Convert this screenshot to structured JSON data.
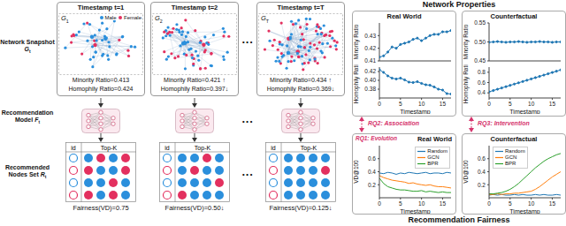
{
  "diagram": {
    "row_labels": [
      {
        "text": "Network Snapshot",
        "symbol": "G",
        "sub": "t"
      },
      {
        "text": "Recommendation Model",
        "symbol": "F",
        "sub": "t"
      },
      {
        "text": "Recommended Nodes Set",
        "symbol": "R",
        "sub": "t"
      }
    ],
    "legend": [
      {
        "name": "Male",
        "color": "#2b8fdc"
      },
      {
        "name": "Female",
        "color": "#e3305f"
      }
    ],
    "table_header": [
      "id",
      "Top-K"
    ],
    "ellipsis": "···",
    "snapshots": [
      {
        "title": "Timestamp t=1",
        "symbol": "G",
        "sub": "1",
        "minority_ratio": "Minority Ratio=0.413",
        "homophily_ratio": "Homophily Ratio=0.424",
        "fairness": "Fairness(VD)=0.75"
      },
      {
        "title": "Timestamp t=2",
        "symbol": "G",
        "sub": "2",
        "minority_ratio": "Minority Ratio=0.421 ↑",
        "homophily_ratio": "Homophily Ratio=0.397↓",
        "fairness": "Fairness(VD)=0.50↓"
      },
      {
        "title": "Timestamp t=T",
        "symbol": "G",
        "sub": "T",
        "minority_ratio": "Minority Ratio=0.434 ↑",
        "homophily_ratio": "Homophily Ratio=0.369↓",
        "fairness": "Fairness(VD)=0.125↓"
      }
    ]
  },
  "network_properties": {
    "title": "Network Properties",
    "columns": [
      "Real World",
      "Counterfactual"
    ]
  },
  "arrows": [
    "RQ2: Association",
    "RQ3: Intervention"
  ],
  "recommendation_fairness": {
    "title": "Recommendation Fairness",
    "annotation": "RQ1: Evolution"
  },
  "chart_data": [
    {
      "type": "line",
      "y_label": "Minority Ratio",
      "tick_labels": "y",
      "x": [
        0,
        1,
        2,
        3,
        4,
        5,
        6,
        7,
        8,
        9,
        10,
        11,
        12,
        13,
        14,
        15,
        16,
        17
      ],
      "xlim": [
        0,
        17
      ],
      "xticks": [
        0,
        5,
        10,
        15
      ],
      "ylim": [
        0.41,
        0.44
      ],
      "yticks": [
        0.41,
        0.42,
        0.43
      ],
      "series": [
        {
          "color": "#1f77b4",
          "marker": "o",
          "values": [
            0.413,
            0.414,
            0.417,
            0.421,
            0.42,
            0.423,
            0.424,
            0.425,
            0.427,
            0.428,
            0.426,
            0.428,
            0.43,
            0.431,
            0.431,
            0.433,
            0.433,
            0.434
          ]
        }
      ]
    },
    {
      "type": "line",
      "y_label": "Homophily Ratio",
      "x_label": "Timestamp",
      "x": [
        0,
        1,
        2,
        3,
        4,
        5,
        6,
        7,
        8,
        9,
        10,
        11,
        12,
        13,
        14,
        15,
        16,
        17
      ],
      "xlim": [
        0,
        17
      ],
      "xticks": [
        0,
        5,
        10,
        15
      ],
      "ylim": [
        0.36,
        0.43
      ],
      "yticks": [
        0.38,
        {
          "value": 0.4,
          "label": "0.40"
        },
        0.42
      ],
      "series": [
        {
          "color": "#1f77b4",
          "marker": "o",
          "values": [
            0.424,
            0.418,
            0.41,
            0.405,
            0.403,
            0.405,
            0.401,
            0.396,
            0.395,
            0.397,
            0.393,
            0.39,
            0.389,
            0.385,
            0.38,
            0.378,
            0.37,
            0.369
          ]
        }
      ]
    },
    {
      "type": "line",
      "y_label": "Minority Ratio",
      "tick_labels": "y",
      "x": [
        0,
        1,
        2,
        3,
        4,
        5,
        6,
        7,
        8,
        9,
        10,
        11,
        12,
        13,
        14,
        15,
        16,
        17
      ],
      "xlim": [
        0,
        17
      ],
      "xticks": [
        0,
        5,
        10,
        15
      ],
      "ylim": [
        0.45,
        0.55
      ],
      "yticks": [
        0.45,
        {
          "value": 0.5,
          "label": "0.50"
        },
        0.55
      ],
      "series": [
        {
          "color": "#1f77b4",
          "marker": "o",
          "values": [
            0.499,
            0.5,
            0.501,
            0.5,
            0.499,
            0.5,
            0.5,
            0.501,
            0.5,
            0.499,
            0.5,
            0.5,
            0.501,
            0.5,
            0.5,
            0.499,
            0.5,
            0.5
          ]
        }
      ]
    },
    {
      "type": "line",
      "y_label": "Homophily Ratio",
      "x_label": "Timestamp",
      "x": [
        0,
        1,
        2,
        3,
        4,
        5,
        6,
        7,
        8,
        9,
        10,
        11,
        12,
        13,
        14,
        15,
        16,
        17
      ],
      "xlim": [
        0,
        17
      ],
      "xticks": [
        0,
        5,
        10,
        15
      ],
      "ylim": [
        0.3,
        0.9
      ],
      "yticks": [
        0.4,
        0.6,
        0.8
      ],
      "series": [
        {
          "color": "#1f77b4",
          "marker": "o",
          "values": [
            0.42,
            0.445,
            0.47,
            0.495,
            0.52,
            0.545,
            0.57,
            0.595,
            0.62,
            0.645,
            0.67,
            0.695,
            0.72,
            0.745,
            0.77,
            0.795,
            0.82,
            0.845
          ]
        }
      ]
    },
    {
      "type": "line",
      "title": "Real World",
      "y_label": "VD@100",
      "x_label": "Timestamp",
      "legend": "upper right",
      "x": [
        0,
        1,
        2,
        3,
        4,
        5,
        6,
        7,
        8,
        9,
        10,
        11,
        12,
        13,
        14,
        15,
        16,
        17
      ],
      "xlim": [
        0,
        17
      ],
      "xticks": [
        0,
        5,
        10,
        15
      ],
      "ylim": [
        0,
        0.8
      ],
      "yticks": [
        0.2,
        0.4,
        0.6
      ],
      "series": [
        {
          "name": "Random",
          "color": "#1f77b4",
          "values": [
            0.38,
            0.37,
            0.39,
            0.38,
            0.36,
            0.38,
            0.37,
            0.39,
            0.38,
            0.37,
            0.38,
            0.39,
            0.37,
            0.38,
            0.38,
            0.37,
            0.39,
            0.38
          ]
        },
        {
          "name": "GCN",
          "color": "#ff7f0e",
          "values": [
            0.34,
            0.31,
            0.29,
            0.27,
            0.26,
            0.25,
            0.24,
            0.22,
            0.23,
            0.21,
            0.2,
            0.19,
            0.2,
            0.18,
            0.17,
            0.17,
            0.16,
            0.15
          ]
        },
        {
          "name": "BPR",
          "color": "#2ca02c",
          "values": [
            0.3,
            0.22,
            0.17,
            0.15,
            0.13,
            0.12,
            0.12,
            0.11,
            0.1,
            0.1,
            0.11,
            0.09,
            0.1,
            0.09,
            0.08,
            0.09,
            0.08,
            0.08
          ]
        }
      ]
    },
    {
      "type": "line",
      "title": "Counterfactual",
      "y_label": "VD@100",
      "x_label": "Timestamp",
      "legend": "upper left",
      "x": [
        0,
        1,
        2,
        3,
        4,
        5,
        6,
        7,
        8,
        9,
        10,
        11,
        12,
        13,
        14,
        15,
        16,
        17
      ],
      "xlim": [
        0,
        17
      ],
      "xticks": [
        0,
        5,
        10,
        15
      ],
      "ylim": [
        0,
        0.8
      ],
      "yticks": [
        0.2,
        0.4,
        0.6
      ],
      "series": [
        {
          "name": "Random",
          "color": "#1f77b4",
          "values": [
            0.04,
            0.05,
            0.04,
            0.05,
            0.04,
            0.04,
            0.05,
            0.04,
            0.05,
            0.04,
            0.04,
            0.05,
            0.04,
            0.05,
            0.04,
            0.04,
            0.05,
            0.04
          ]
        },
        {
          "name": "GCN",
          "color": "#ff7f0e",
          "values": [
            0.05,
            0.05,
            0.06,
            0.05,
            0.06,
            0.06,
            0.07,
            0.07,
            0.08,
            0.09,
            0.1,
            0.13,
            0.17,
            0.22,
            0.27,
            0.32,
            0.36,
            0.4
          ]
        },
        {
          "name": "BPR",
          "color": "#2ca02c",
          "values": [
            0.06,
            0.06,
            0.07,
            0.08,
            0.1,
            0.13,
            0.17,
            0.22,
            0.28,
            0.34,
            0.4,
            0.46,
            0.51,
            0.56,
            0.6,
            0.63,
            0.66,
            0.68
          ]
        }
      ]
    }
  ]
}
